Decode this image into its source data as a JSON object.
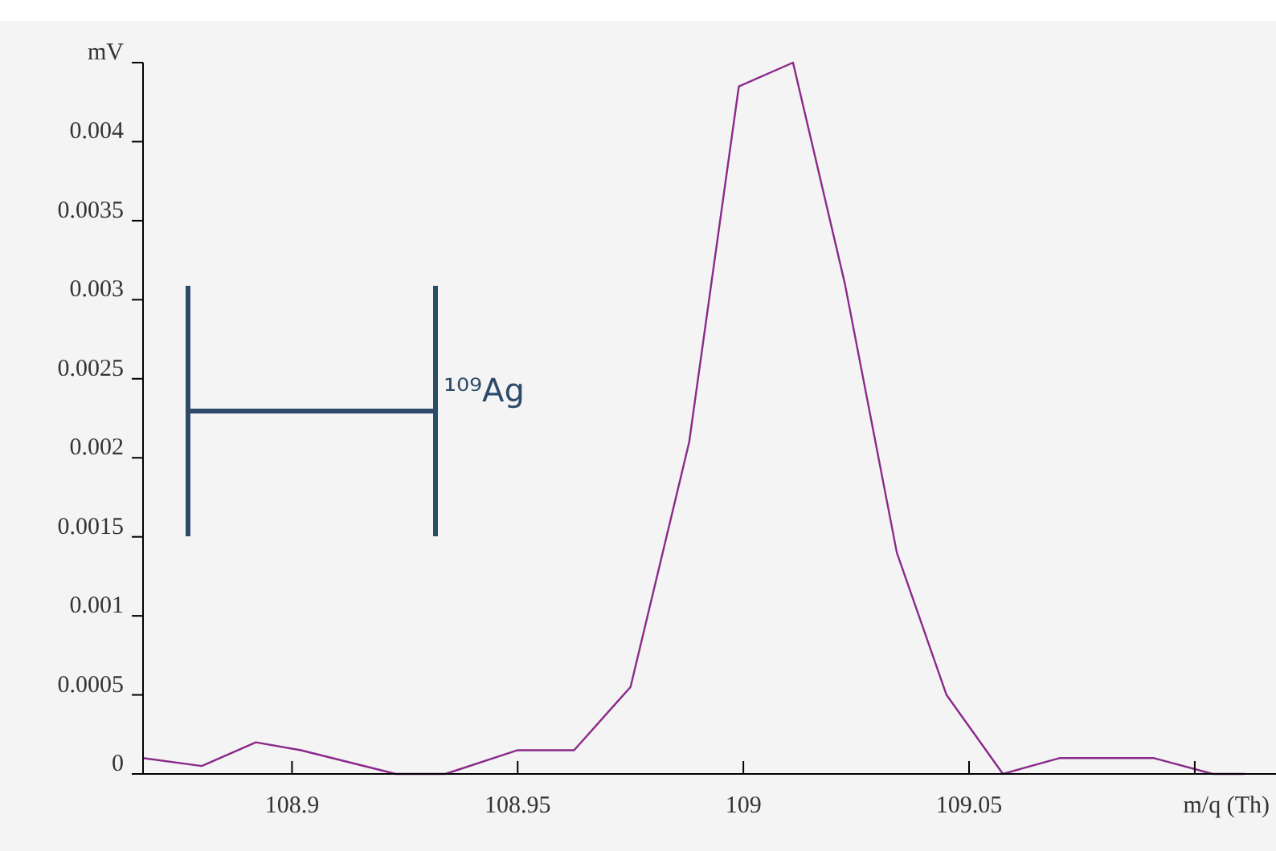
{
  "chart_data": {
    "type": "line",
    "xlabel": "m/q (Th)",
    "ylabel": "mV",
    "annotations": [
      "¹⁰⁹Ag"
    ],
    "xlim": [
      108.867,
      109.118
    ],
    "ylim": [
      0,
      0.0045
    ],
    "xticks": [
      108.9,
      108.95,
      109,
      109.05,
      {
        "value": 109.1,
        "label": null
      }
    ],
    "yticks": [
      0,
      0.0005,
      0.001,
      0.0015,
      0.002,
      0.0025,
      0.003,
      0.0035,
      0.004,
      {
        "value": 0.0045,
        "label": null
      }
    ],
    "grid": false,
    "marker": "none",
    "line_style": "solid",
    "series": [
      {
        "color": "#8a2a8a",
        "x": [
          108.867,
          108.88,
          108.892,
          108.902,
          108.923,
          108.929,
          108.934,
          108.95,
          108.9625,
          108.975,
          108.988,
          108.999,
          109.011,
          109.0225,
          109.034,
          109.045,
          109.0575,
          109.07,
          109.091,
          109.104,
          109.111
        ],
        "values": [
          0.0001,
          5e-05,
          0.0002,
          0.00015,
          0,
          0,
          0,
          0.00015,
          0.00015,
          0.00055,
          0.0021,
          0.00435,
          0.0045,
          0.0031,
          0.0014,
          0.0005,
          0,
          0.0001,
          0.0001,
          0,
          0
        ]
      }
    ]
  }
}
